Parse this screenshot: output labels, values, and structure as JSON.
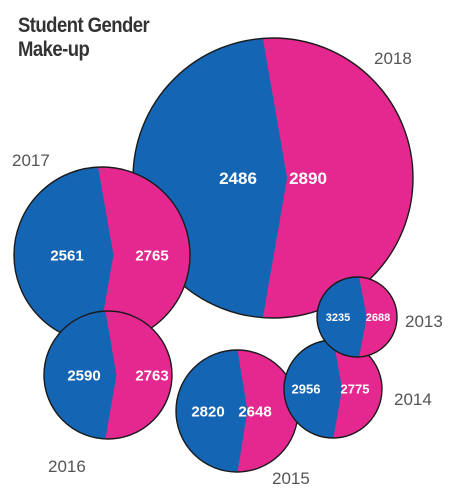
{
  "title_line1": "Student Gender",
  "title_line2": "Make-up",
  "colors": {
    "blue": "#1565b5",
    "pink": "#e5288f",
    "outline": "#1a1a1a"
  },
  "chart_data": {
    "type": "pie",
    "title": "Student Gender Make-up",
    "pies": [
      {
        "year": "2018",
        "values": [
          2486,
          2890
        ]
      },
      {
        "year": "2017",
        "values": [
          2561,
          2765
        ]
      },
      {
        "year": "2016",
        "values": [
          2590,
          2763
        ]
      },
      {
        "year": "2015",
        "values": [
          2820,
          2648
        ]
      },
      {
        "year": "2014",
        "values": [
          2956,
          2775
        ]
      },
      {
        "year": "2013",
        "values": [
          3235,
          2688
        ]
      }
    ]
  }
}
